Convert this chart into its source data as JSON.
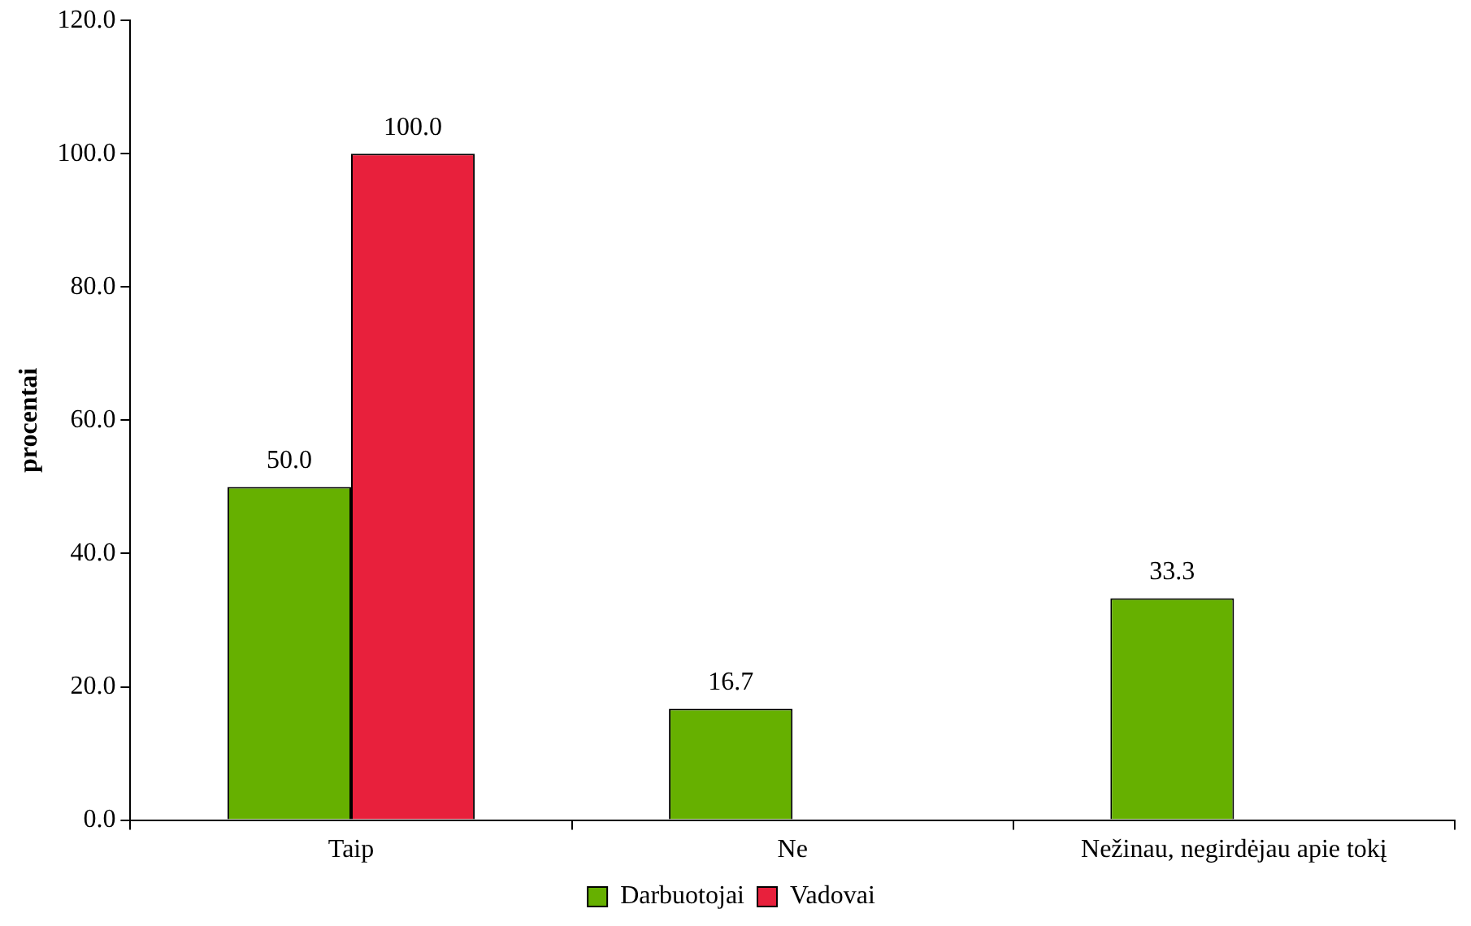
{
  "chart_data": {
    "type": "bar",
    "ylabel": "procentai",
    "categories": [
      "Taip",
      "Ne",
      "Nežinau, negirdėjau apie tokį"
    ],
    "series": [
      {
        "name": "Darbuotojai",
        "color": "#66b000",
        "values": [
          50.0,
          16.7,
          33.3
        ],
        "value_labels": [
          "50.0",
          "16.7",
          "33.3"
        ]
      },
      {
        "name": "Vadovai",
        "color": "#e8203c",
        "values": [
          100.0,
          null,
          null
        ],
        "value_labels": [
          "100.0",
          null,
          null
        ]
      }
    ],
    "ylim": [
      0,
      120
    ],
    "yticks": [
      {
        "value": 0,
        "label": "0.0"
      },
      {
        "value": 20,
        "label": "20.0"
      },
      {
        "value": 40,
        "label": "40.0"
      },
      {
        "value": 60,
        "label": "60.0"
      },
      {
        "value": 80,
        "label": "80.0"
      },
      {
        "value": 100,
        "label": "100.0"
      },
      {
        "value": 120,
        "label": "120.0"
      }
    ],
    "grid": false,
    "legend": "bottom"
  }
}
